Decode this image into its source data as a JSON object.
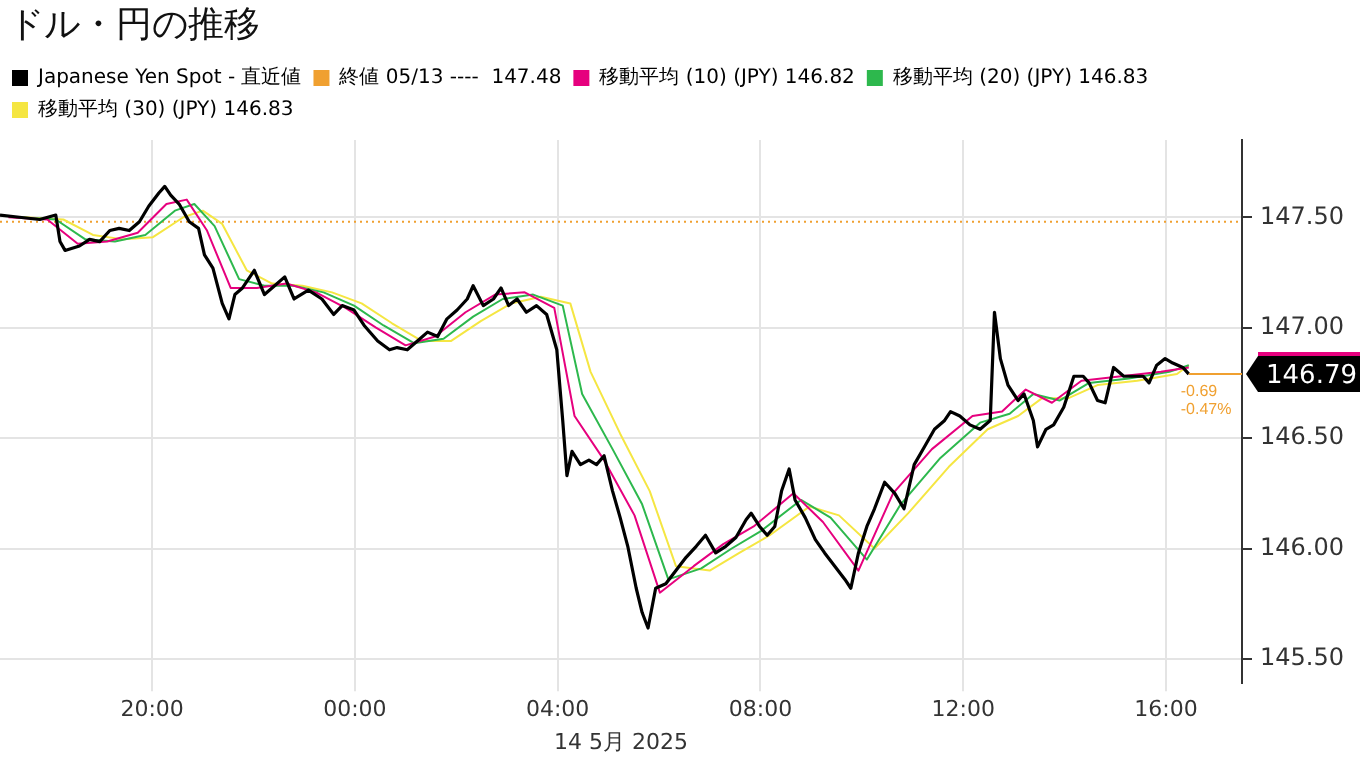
{
  "chart_data": {
    "type": "line",
    "title": "ドル・円の推移",
    "xlabel": "14 5月 2025",
    "xlim": [
      "2025-05-13T17:00",
      "2025-05-14T17:30"
    ],
    "xticks": [
      {
        "value": "2025-05-13T20:00",
        "label": "20:00"
      },
      {
        "value": "2025-05-14T00:00",
        "label": "00:00"
      },
      {
        "value": "2025-05-14T04:00",
        "label": "04:00"
      },
      {
        "value": "2025-05-14T08:00",
        "label": "08:00"
      },
      {
        "value": "2025-05-14T12:00",
        "label": "12:00"
      },
      {
        "value": "2025-05-14T16:00",
        "label": "16:00"
      }
    ],
    "ylim": [
      145.39,
      147.85
    ],
    "yticks": [
      {
        "value": 145.5,
        "label": "145.50"
      },
      {
        "value": 146,
        "label": "146.00"
      },
      {
        "value": 146.5,
        "label": "146.50"
      },
      {
        "value": 147,
        "label": "147.00"
      },
      {
        "value": 147.5,
        "label": "147.50"
      }
    ],
    "grid": true,
    "legend": "top left",
    "marker": "none",
    "line_style": "solid",
    "series": [
      {
        "name": "Japanese Yen Spot - 直近値",
        "color": "#000000",
        "x": [
          "2025-05-13T17:00",
          "2025-05-13T17:23",
          "2025-05-13T17:47",
          "2025-05-13T18:06",
          "2025-05-13T18:11",
          "2025-05-13T18:17",
          "2025-05-13T18:34",
          "2025-05-13T18:46",
          "2025-05-13T18:58",
          "2025-05-13T19:10",
          "2025-05-13T19:21",
          "2025-05-13T19:33",
          "2025-05-13T19:45",
          "2025-05-13T19:56",
          "2025-05-13T20:08",
          "2025-05-13T20:15",
          "2025-05-13T20:22",
          "2025-05-13T20:32",
          "2025-05-13T20:44",
          "2025-05-13T20:55",
          "2025-05-13T21:02",
          "2025-05-13T21:12",
          "2025-05-13T21:23",
          "2025-05-13T21:31",
          "2025-05-13T21:38",
          "2025-05-13T21:47",
          "2025-05-13T22:01",
          "2025-05-13T22:13",
          "2025-05-13T22:25",
          "2025-05-13T22:37",
          "2025-05-13T22:48",
          "2025-05-13T23:05",
          "2025-05-13T23:21",
          "2025-05-13T23:35",
          "2025-05-13T23:45",
          "2025-05-13T23:59",
          "2025-05-14T00:11",
          "2025-05-14T00:27",
          "2025-05-14T00:41",
          "2025-05-14T00:50",
          "2025-05-14T01:02",
          "2025-05-14T01:14",
          "2025-05-14T01:26",
          "2025-05-14T01:38",
          "2025-05-14T01:49",
          "2025-05-14T02:01",
          "2025-05-14T02:13",
          "2025-05-14T02:20",
          "2025-05-14T02:32",
          "2025-05-14T02:44",
          "2025-05-14T02:53",
          "2025-05-14T03:02",
          "2025-05-14T03:12",
          "2025-05-14T03:23",
          "2025-05-14T03:35",
          "2025-05-14T03:47",
          "2025-05-14T03:59",
          "2025-05-14T04:06",
          "2025-05-14T04:11",
          "2025-05-14T04:17",
          "2025-05-14T04:27",
          "2025-05-14T04:37",
          "2025-05-14T04:46",
          "2025-05-14T04:55",
          "2025-05-14T05:05",
          "2025-05-14T05:14",
          "2025-05-14T05:23",
          "2025-05-14T05:33",
          "2025-05-14T05:40",
          "2025-05-14T05:47",
          "2025-05-14T05:56",
          "2025-05-14T06:08",
          "2025-05-14T06:20",
          "2025-05-14T06:32",
          "2025-05-14T06:44",
          "2025-05-14T06:55",
          "2025-05-14T07:07",
          "2025-05-14T07:19",
          "2025-05-14T07:31",
          "2025-05-14T07:43",
          "2025-05-14T07:49",
          "2025-05-14T07:59",
          "2025-05-14T08:08",
          "2025-05-14T08:17",
          "2025-05-14T08:25",
          "2025-05-14T08:34",
          "2025-05-14T08:41",
          "2025-05-14T08:53",
          "2025-05-14T09:05",
          "2025-05-14T09:16",
          "2025-05-14T09:28",
          "2025-05-14T09:40",
          "2025-05-14T09:47",
          "2025-05-14T09:56",
          "2025-05-14T10:06",
          "2025-05-14T10:15",
          "2025-05-14T10:27",
          "2025-05-14T10:39",
          "2025-05-14T10:50",
          "2025-05-14T11:02",
          "2025-05-14T11:14",
          "2025-05-14T11:26",
          "2025-05-14T11:38",
          "2025-05-14T11:45",
          "2025-05-14T11:56",
          "2025-05-14T12:08",
          "2025-05-14T12:20",
          "2025-05-14T12:32",
          "2025-05-14T12:37",
          "2025-05-14T12:44",
          "2025-05-14T12:53",
          "2025-05-14T13:05",
          "2025-05-14T13:12",
          "2025-05-14T13:23",
          "2025-05-14T13:28",
          "2025-05-14T13:38",
          "2025-05-14T13:47",
          "2025-05-14T13:59",
          "2025-05-14T14:11",
          "2025-05-14T14:22",
          "2025-05-14T14:29",
          "2025-05-14T14:39",
          "2025-05-14T14:48",
          "2025-05-14T14:58",
          "2025-05-14T15:10",
          "2025-05-14T15:21",
          "2025-05-14T15:33",
          "2025-05-14T15:40",
          "2025-05-14T15:49",
          "2025-05-14T15:59",
          "2025-05-14T16:08",
          "2025-05-14T16:20",
          "2025-05-14T16:27"
        ],
        "values": [
          147.51,
          147.5,
          147.49,
          147.51,
          147.39,
          147.35,
          147.37,
          147.4,
          147.39,
          147.44,
          147.45,
          147.44,
          147.48,
          147.55,
          147.61,
          147.64,
          147.6,
          147.56,
          147.48,
          147.45,
          147.33,
          147.27,
          147.11,
          147.04,
          147.15,
          147.18,
          147.26,
          147.15,
          147.19,
          147.23,
          147.13,
          147.17,
          147.13,
          147.06,
          147.1,
          147.08,
          147.01,
          146.94,
          146.9,
          146.91,
          146.9,
          146.94,
          146.98,
          146.96,
          147.04,
          147.08,
          147.13,
          147.19,
          147.1,
          147.13,
          147.18,
          147.1,
          147.13,
          147.07,
          147.1,
          147.06,
          146.9,
          146.58,
          146.33,
          146.44,
          146.38,
          146.4,
          146.38,
          146.42,
          146.26,
          146.14,
          146.01,
          145.82,
          145.71,
          145.64,
          145.82,
          145.84,
          145.9,
          145.96,
          146.01,
          146.06,
          145.98,
          146.01,
          146.05,
          146.13,
          146.16,
          146.1,
          146.06,
          146.1,
          146.26,
          146.36,
          146.22,
          146.14,
          146.04,
          145.98,
          145.92,
          145.86,
          145.82,
          145.98,
          146.1,
          146.18,
          146.3,
          146.25,
          146.18,
          146.38,
          146.46,
          146.54,
          146.58,
          146.62,
          146.6,
          146.56,
          146.54,
          146.58,
          147.07,
          146.86,
          146.74,
          146.67,
          146.7,
          146.58,
          146.46,
          146.54,
          146.56,
          146.64,
          146.78,
          146.78,
          146.75,
          146.67,
          146.66,
          146.82,
          146.78,
          146.78,
          146.78,
          146.75,
          146.83,
          146.86,
          146.84,
          146.82,
          146.79
        ]
      },
      {
        "name": "移動平均 (10) (JPY) 146.82",
        "color": "#e6007e",
        "x": [
          "2025-05-13T17:10",
          "2025-05-13T17:56",
          "2025-05-13T18:32",
          "2025-05-13T19:07",
          "2025-05-13T19:43",
          "2025-05-13T20:17",
          "2025-05-13T20:41",
          "2025-05-13T21:05",
          "2025-05-13T21:33",
          "2025-05-13T22:04",
          "2025-05-13T22:39",
          "2025-05-13T23:14",
          "2025-05-13T23:49",
          "2025-05-14T00:25",
          "2025-05-14T01:00",
          "2025-05-14T01:35",
          "2025-05-14T02:11",
          "2025-05-14T02:46",
          "2025-05-14T03:21",
          "2025-05-14T03:56",
          "2025-05-14T04:20",
          "2025-05-14T04:55",
          "2025-05-14T05:31",
          "2025-05-14T06:01",
          "2025-05-14T06:41",
          "2025-05-14T07:16",
          "2025-05-14T07:52",
          "2025-05-14T08:39",
          "2025-05-14T09:14",
          "2025-05-14T09:56",
          "2025-05-14T10:37",
          "2025-05-14T11:23",
          "2025-05-14T12:11",
          "2025-05-14T12:46",
          "2025-05-14T13:14",
          "2025-05-14T13:45",
          "2025-05-14T14:20",
          "2025-05-14T15:07",
          "2025-05-14T15:54",
          "2025-05-14T16:27"
        ],
        "values": [
          147.5,
          147.49,
          147.38,
          147.39,
          147.43,
          147.56,
          147.58,
          147.44,
          147.18,
          147.18,
          147.2,
          147.16,
          147.09,
          147.0,
          146.92,
          146.96,
          147.07,
          147.15,
          147.16,
          147.09,
          146.6,
          146.4,
          146.15,
          145.8,
          145.92,
          146.02,
          146.1,
          146.25,
          146.12,
          145.9,
          146.25,
          146.45,
          146.6,
          146.62,
          146.72,
          146.66,
          146.76,
          146.78,
          146.8,
          146.82
        ]
      },
      {
        "name": "移動平均 (20) (JPY) 146.83",
        "color": "#2db84d",
        "x": [
          "2025-05-13T17:19",
          "2025-05-13T18:06",
          "2025-05-13T18:41",
          "2025-05-13T19:16",
          "2025-05-13T19:52",
          "2025-05-13T20:27",
          "2025-05-13T20:50",
          "2025-05-13T21:14",
          "2025-05-13T21:43",
          "2025-05-13T22:13",
          "2025-05-13T22:48",
          "2025-05-13T23:23",
          "2025-05-13T23:59",
          "2025-05-14T00:34",
          "2025-05-14T01:10",
          "2025-05-14T01:45",
          "2025-05-14T02:20",
          "2025-05-14T02:55",
          "2025-05-14T03:31",
          "2025-05-14T04:06",
          "2025-05-14T04:29",
          "2025-05-14T05:05",
          "2025-05-14T05:40",
          "2025-05-14T06:11",
          "2025-05-14T06:50",
          "2025-05-14T07:26",
          "2025-05-14T08:01",
          "2025-05-14T08:48",
          "2025-05-14T09:23",
          "2025-05-14T10:06",
          "2025-05-14T10:46",
          "2025-05-14T11:33",
          "2025-05-14T12:20",
          "2025-05-14T12:55",
          "2025-05-14T13:23",
          "2025-05-14T13:54",
          "2025-05-14T14:29",
          "2025-05-14T15:16",
          "2025-05-14T16:04",
          "2025-05-14T16:27"
        ],
        "values": [
          147.5,
          147.49,
          147.4,
          147.39,
          147.42,
          147.53,
          147.56,
          147.46,
          147.22,
          147.19,
          147.19,
          147.16,
          147.1,
          147.01,
          146.93,
          146.95,
          147.05,
          147.13,
          147.15,
          147.1,
          146.7,
          146.45,
          146.2,
          145.86,
          145.91,
          146.0,
          146.08,
          146.22,
          146.14,
          145.95,
          146.2,
          146.41,
          146.57,
          146.61,
          146.7,
          146.67,
          146.75,
          146.77,
          146.8,
          146.83
        ]
      },
      {
        "name": "移動平均 (30) (JPY) 146.83",
        "color": "#f5e642",
        "x": [
          "2025-05-13T17:28",
          "2025-05-13T18:15",
          "2025-05-13T18:50",
          "2025-05-13T19:26",
          "2025-05-13T20:01",
          "2025-05-13T20:37",
          "2025-05-13T21:00",
          "2025-05-13T21:23",
          "2025-05-13T21:52",
          "2025-05-13T22:22",
          "2025-05-13T22:58",
          "2025-05-13T23:33",
          "2025-05-14T00:08",
          "2025-05-14T00:44",
          "2025-05-14T01:19",
          "2025-05-14T01:54",
          "2025-05-14T02:29",
          "2025-05-14T03:05",
          "2025-05-14T03:40",
          "2025-05-14T04:15",
          "2025-05-14T04:39",
          "2025-05-14T05:14",
          "2025-05-14T05:49",
          "2025-05-14T06:20",
          "2025-05-14T07:00",
          "2025-05-14T07:35",
          "2025-05-14T08:11",
          "2025-05-14T08:58",
          "2025-05-14T09:33",
          "2025-05-14T10:15",
          "2025-05-14T10:55",
          "2025-05-14T11:43",
          "2025-05-14T12:29",
          "2025-05-14T13:05",
          "2025-05-14T13:33",
          "2025-05-14T14:04",
          "2025-05-14T14:39",
          "2025-05-14T15:26",
          "2025-05-14T16:13",
          "2025-05-14T16:27"
        ],
        "values": [
          147.5,
          147.49,
          147.42,
          147.4,
          147.41,
          147.5,
          147.53,
          147.47,
          147.26,
          147.2,
          147.19,
          147.16,
          147.11,
          147.02,
          146.94,
          146.94,
          147.03,
          147.11,
          147.14,
          147.11,
          146.8,
          146.52,
          146.26,
          145.92,
          145.9,
          145.98,
          146.06,
          146.19,
          146.15,
          146.0,
          146.16,
          146.37,
          146.54,
          146.6,
          146.68,
          146.68,
          146.74,
          146.76,
          146.79,
          146.83
        ]
      }
    ],
    "ref_lines": [
      {
        "axis": "y",
        "value": 147.48,
        "label": "終値 05/13 ----  147.48",
        "color": "#f0a030",
        "line_style": "dotted"
      }
    ],
    "annotations": [
      {
        "text": "146.79",
        "x": "2025-05-14T16:27",
        "y": 146.79
      },
      "-0.69",
      "-0.47%"
    ]
  }
}
